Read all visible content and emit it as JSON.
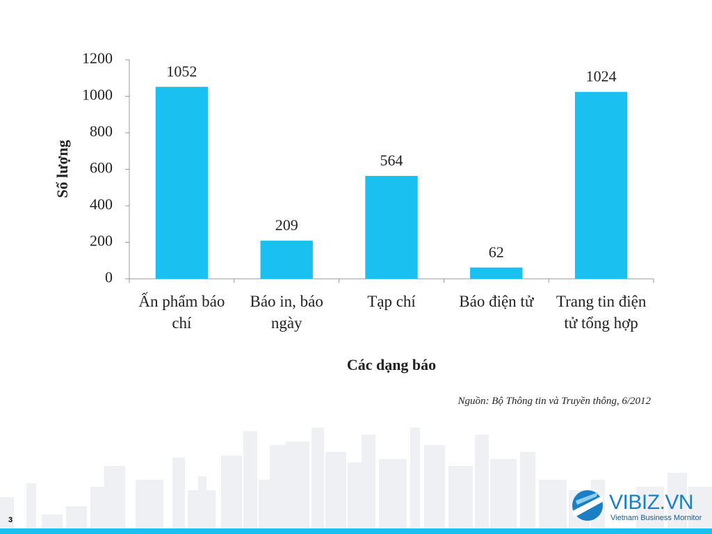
{
  "chart_data": {
    "type": "bar",
    "categories": [
      "Ấn phẩm báo chí",
      "Báo in, báo ngày",
      "Tạp chí",
      "Báo điện tử",
      "Trang tin điện tử tổng hợp"
    ],
    "values": [
      1052,
      209,
      564,
      62,
      1024
    ],
    "color": "#1ac0f0",
    "ylim": [
      0,
      1200
    ],
    "yticks": [
      0,
      200,
      400,
      600,
      800,
      1000,
      1200
    ],
    "x_label": "Các dạng báo",
    "y_label": "Số lượng",
    "grid": false
  },
  "slide": {
    "source": "Nguồn: Bộ Thông tin và Truyền thông, 6/2012",
    "page_number": "3",
    "logo": "VIBIZ.VN",
    "logo_tagline": "Vietnam Business Mornitor"
  }
}
